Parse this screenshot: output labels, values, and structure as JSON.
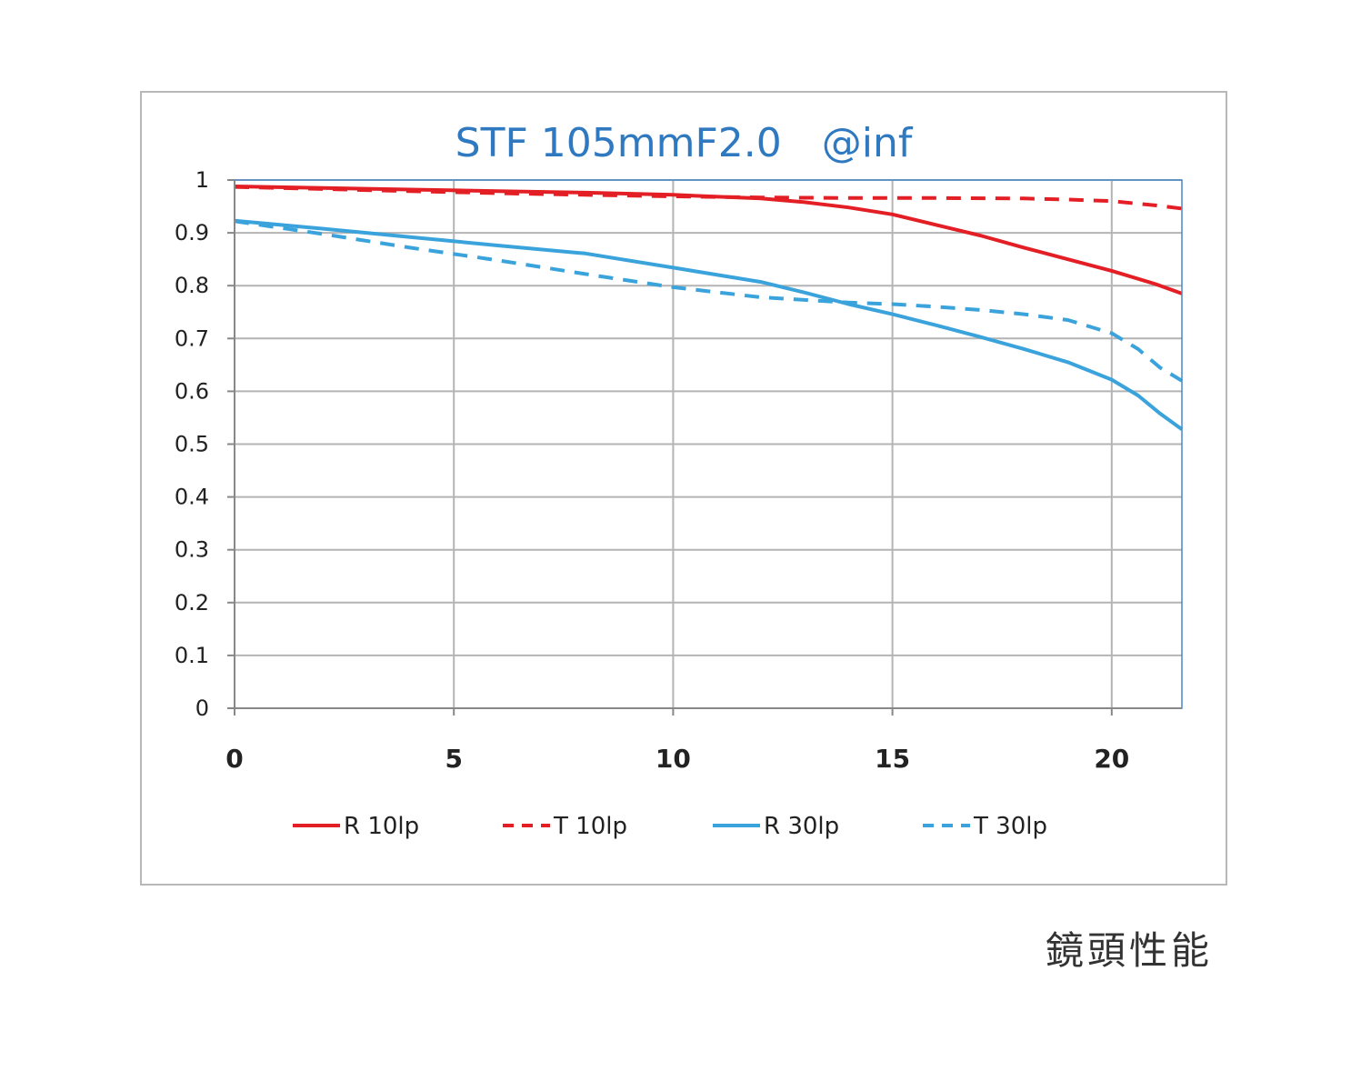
{
  "chart_data": {
    "type": "line",
    "title": "STF 105mmF2.0　@inf",
    "title_color": "#2f79c0",
    "xlim": [
      0,
      21.6
    ],
    "ylim": [
      0,
      1
    ],
    "x_ticks": [
      "0",
      "5",
      "10",
      "15",
      "20"
    ],
    "y_ticks": [
      "0",
      "0.1",
      "0.2",
      "0.3",
      "0.4",
      "0.5",
      "0.6",
      "0.7",
      "0.8",
      "0.9",
      "1"
    ],
    "grid": true,
    "legend_position": "bottom",
    "series": [
      {
        "name": "R 10lp",
        "color": "#e31e24",
        "dash": false,
        "points": [
          [
            0,
            0.988
          ],
          [
            2,
            0.985
          ],
          [
            4,
            0.982
          ],
          [
            6,
            0.979
          ],
          [
            8,
            0.976
          ],
          [
            10,
            0.972
          ],
          [
            12,
            0.965
          ],
          [
            13,
            0.958
          ],
          [
            14,
            0.948
          ],
          [
            15,
            0.935
          ],
          [
            16,
            0.915
          ],
          [
            17,
            0.895
          ],
          [
            18,
            0.872
          ],
          [
            19,
            0.85
          ],
          [
            20,
            0.828
          ],
          [
            21,
            0.803
          ],
          [
            21.6,
            0.785
          ]
        ]
      },
      {
        "name": "T 10lp",
        "color": "#e31e24",
        "dash": true,
        "points": [
          [
            0,
            0.987
          ],
          [
            2,
            0.983
          ],
          [
            4,
            0.979
          ],
          [
            6,
            0.975
          ],
          [
            8,
            0.972
          ],
          [
            10,
            0.969
          ],
          [
            12,
            0.967
          ],
          [
            14,
            0.966
          ],
          [
            16,
            0.966
          ],
          [
            18,
            0.965
          ],
          [
            19,
            0.963
          ],
          [
            20,
            0.96
          ],
          [
            21,
            0.952
          ],
          [
            21.6,
            0.946
          ]
        ]
      },
      {
        "name": "R 30lp",
        "color": "#3aa3dc",
        "dash": false,
        "points": [
          [
            0,
            0.923
          ],
          [
            2,
            0.908
          ],
          [
            4,
            0.892
          ],
          [
            6,
            0.876
          ],
          [
            8,
            0.861
          ],
          [
            10,
            0.834
          ],
          [
            12,
            0.807
          ],
          [
            13,
            0.787
          ],
          [
            14,
            0.765
          ],
          [
            15,
            0.746
          ],
          [
            16,
            0.725
          ],
          [
            17,
            0.703
          ],
          [
            18,
            0.68
          ],
          [
            19,
            0.655
          ],
          [
            20,
            0.622
          ],
          [
            20.6,
            0.592
          ],
          [
            21.1,
            0.558
          ],
          [
            21.6,
            0.528
          ]
        ]
      },
      {
        "name": "T 30lp",
        "color": "#3aa3dc",
        "dash": true,
        "points": [
          [
            0,
            0.922
          ],
          [
            2,
            0.898
          ],
          [
            4,
            0.872
          ],
          [
            6,
            0.848
          ],
          [
            8,
            0.822
          ],
          [
            10,
            0.797
          ],
          [
            12,
            0.778
          ],
          [
            14,
            0.768
          ],
          [
            15,
            0.765
          ],
          [
            16,
            0.76
          ],
          [
            17,
            0.754
          ],
          [
            18,
            0.746
          ],
          [
            19,
            0.735
          ],
          [
            20,
            0.71
          ],
          [
            20.6,
            0.68
          ],
          [
            21.1,
            0.645
          ],
          [
            21.6,
            0.62
          ]
        ]
      }
    ]
  },
  "caption": "鏡頭性能"
}
